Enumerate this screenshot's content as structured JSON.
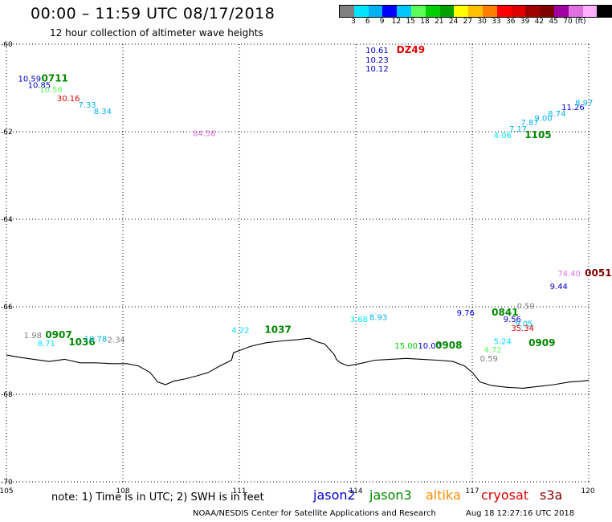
{
  "title": "00:00 – 11:59 UTC 08/17/2018",
  "subtitle": "12 hour collection of altimeter wave heights",
  "colorbar": {
    "colors": [
      "#808080",
      "#00e5ff",
      "#00b0f0",
      "#0000ff",
      "#00c8ff",
      "#5aff5a",
      "#00d000",
      "#00a000",
      "#ffff00",
      "#ffc000",
      "#ff8000",
      "#ff0000",
      "#e00000",
      "#a00000",
      "#800000",
      "#a000a0",
      "#e070e0",
      "#ffb0ff",
      "#000000"
    ],
    "labels": [
      "3",
      "6",
      "9",
      "12",
      "15",
      "18",
      "21",
      "24",
      "27",
      "30",
      "33",
      "36",
      "39",
      "42",
      "45",
      "70"
    ],
    "unit": "(ft)"
  },
  "note": "note:  1) Time is in UTC;  2) SWH is in feet",
  "satellites": [
    {
      "name": "jason2",
      "color": "#0000cc"
    },
    {
      "name": "jason3",
      "color": "#008800"
    },
    {
      "name": "altika",
      "color": "#ff8c00"
    },
    {
      "name": "cryosat",
      "color": "#dd0000"
    },
    {
      "name": "s3a",
      "color": "#880000"
    }
  ],
  "footer": "NOAA/NESDIS Center for Satellite Applications and Research",
  "footer_time": "Aug 18 12:27:16 UTC 2018",
  "map": {
    "lon_range": [
      105,
      120
    ],
    "lat_range": [
      -70,
      -60
    ],
    "lon_ticks": [
      "105",
      "108",
      "111",
      "114",
      "117",
      "120"
    ],
    "lat_ticks": [
      "-60",
      "-62",
      "-64",
      "-66",
      "-68",
      "-70"
    ],
    "grid": true
  },
  "observations": [
    {
      "text": "10.59",
      "lon": 105.3,
      "lat": -60.85,
      "color": "#0000cc"
    },
    {
      "text": "0711",
      "lon": 105.9,
      "lat": -60.85,
      "color": "#008800",
      "bold": true
    },
    {
      "text": "10.85",
      "lon": 105.55,
      "lat": -61.0,
      "color": "#0000cc"
    },
    {
      "text": "10.58",
      "lon": 105.85,
      "lat": -61.1,
      "color": "#5aff5a"
    },
    {
      "text": "30.16",
      "lon": 106.3,
      "lat": -61.3,
      "color": "#dd0000"
    },
    {
      "text": "7.33",
      "lon": 106.85,
      "lat": -61.45,
      "color": "#00b0f0"
    },
    {
      "text": "8.34",
      "lon": 107.25,
      "lat": -61.6,
      "color": "#00b0f0"
    },
    {
      "text": "84.58",
      "lon": 109.8,
      "lat": -62.1,
      "color": "#e070e0"
    },
    {
      "text": "10.61",
      "lon": 114.25,
      "lat": -60.2,
      "color": "#0000cc"
    },
    {
      "text": "DZ49",
      "lon": 115.05,
      "lat": -60.2,
      "color": "#dd0000",
      "bold": true
    },
    {
      "text": "10.23",
      "lon": 114.25,
      "lat": -60.42,
      "color": "#0000cc"
    },
    {
      "text": "10.12",
      "lon": 114.25,
      "lat": -60.62,
      "color": "#0000cc"
    },
    {
      "text": "4.06",
      "lon": 117.55,
      "lat": -62.15,
      "color": "#00e5ff"
    },
    {
      "text": "1105",
      "lon": 118.35,
      "lat": -62.15,
      "color": "#008800",
      "bold": true
    },
    {
      "text": "7.17",
      "lon": 117.95,
      "lat": -62.0,
      "color": "#00b0f0"
    },
    {
      "text": "7.87",
      "lon": 118.25,
      "lat": -61.85,
      "color": "#00b0f0"
    },
    {
      "text": "9.00",
      "lon": 118.6,
      "lat": -61.75,
      "color": "#00b0f0"
    },
    {
      "text": "8.74",
      "lon": 118.95,
      "lat": -61.65,
      "color": "#00b0f0"
    },
    {
      "text": "11.26",
      "lon": 119.3,
      "lat": -61.5,
      "color": "#0000cc"
    },
    {
      "text": "8.97",
      "lon": 119.65,
      "lat": -61.4,
      "color": "#00b0f0"
    },
    {
      "text": "74.40",
      "lon": 119.2,
      "lat": -65.3,
      "color": "#e070e0"
    },
    {
      "text": "0051",
      "lon": 119.9,
      "lat": -65.3,
      "color": "#800000",
      "bold": true
    },
    {
      "text": "9.44",
      "lon": 119.0,
      "lat": -65.6,
      "color": "#0000cc"
    },
    {
      "text": "0.59",
      "lon": 118.15,
      "lat": -66.05,
      "color": "#808080"
    },
    {
      "text": "9.76",
      "lon": 116.6,
      "lat": -66.2,
      "color": "#0000ff"
    },
    {
      "text": "0841",
      "lon": 117.5,
      "lat": -66.2,
      "color": "#008800",
      "bold": true
    },
    {
      "text": "9.56",
      "lon": 117.8,
      "lat": -66.35,
      "color": "#0000cc"
    },
    {
      "text": "9.05",
      "lon": 118.1,
      "lat": -66.45,
      "color": "#00b0f0"
    },
    {
      "text": "35.34",
      "lon": 118.0,
      "lat": -66.55,
      "color": "#dd0000"
    },
    {
      "text": "3.68",
      "lon": 113.85,
      "lat": -66.35,
      "color": "#00e5ff"
    },
    {
      "text": "8.93",
      "lon": 114.35,
      "lat": -66.3,
      "color": "#00b0f0"
    },
    {
      "text": "15.00",
      "lon": 115.0,
      "lat": -66.95,
      "color": "#00d000"
    },
    {
      "text": "10.00",
      "lon": 115.6,
      "lat": -66.95,
      "color": "#0000cc"
    },
    {
      "text": "0908",
      "lon": 116.05,
      "lat": -66.95,
      "color": "#008800",
      "bold": true
    },
    {
      "text": "5.24",
      "lon": 117.55,
      "lat": -66.85,
      "color": "#00e5ff"
    },
    {
      "text": "0909",
      "lon": 118.45,
      "lat": -66.9,
      "color": "#008800",
      "bold": true
    },
    {
      "text": "4.72",
      "lon": 117.3,
      "lat": -67.05,
      "color": "#5aff5a"
    },
    {
      "text": "0.59",
      "lon": 117.2,
      "lat": -67.25,
      "color": "#808080"
    },
    {
      "text": "4.22",
      "lon": 110.8,
      "lat": -66.6,
      "color": "#00e5ff"
    },
    {
      "text": "1037",
      "lon": 111.65,
      "lat": -66.6,
      "color": "#008800",
      "bold": true
    },
    {
      "text": "1.98",
      "lon": 105.45,
      "lat": -66.72,
      "color": "#808080"
    },
    {
      "text": "0907",
      "lon": 106.0,
      "lat": -66.72,
      "color": "#008800",
      "bold": true
    },
    {
      "text": "8.71",
      "lon": 105.8,
      "lat": -66.9,
      "color": "#00e5ff"
    },
    {
      "text": "1036",
      "lon": 106.6,
      "lat": -66.88,
      "color": "#008800",
      "bold": true
    },
    {
      "text": "10.78",
      "lon": 107.0,
      "lat": -66.8,
      "color": "#00b0f0"
    },
    {
      "text": "2.34",
      "lon": 107.6,
      "lat": -66.82,
      "color": "#808080"
    }
  ],
  "coastline": [
    [
      105,
      -67.1
    ],
    [
      105.3,
      -67.15
    ],
    [
      105.7,
      -67.2
    ],
    [
      106.1,
      -67.25
    ],
    [
      106.5,
      -67.2
    ],
    [
      106.9,
      -67.28
    ],
    [
      107.3,
      -67.28
    ],
    [
      107.7,
      -67.3
    ],
    [
      108.1,
      -67.3
    ],
    [
      108.4,
      -67.35
    ],
    [
      108.7,
      -67.5
    ],
    [
      108.9,
      -67.72
    ],
    [
      109.1,
      -67.78
    ],
    [
      109.3,
      -67.7
    ],
    [
      109.6,
      -67.65
    ],
    [
      109.9,
      -67.58
    ],
    [
      110.2,
      -67.5
    ],
    [
      110.5,
      -67.35
    ],
    [
      110.8,
      -67.22
    ],
    [
      110.85,
      -67.05
    ],
    [
      111.0,
      -67.0
    ],
    [
      111.3,
      -66.9
    ],
    [
      111.7,
      -66.82
    ],
    [
      112.1,
      -66.78
    ],
    [
      112.5,
      -66.75
    ],
    [
      112.8,
      -66.72
    ],
    [
      113.0,
      -66.8
    ],
    [
      113.2,
      -66.85
    ],
    [
      113.3,
      -66.95
    ],
    [
      113.45,
      -67.1
    ],
    [
      113.5,
      -67.2
    ],
    [
      113.6,
      -67.28
    ],
    [
      113.8,
      -67.35
    ],
    [
      114.1,
      -67.3
    ],
    [
      114.5,
      -67.22
    ],
    [
      114.9,
      -67.2
    ],
    [
      115.3,
      -67.18
    ],
    [
      115.7,
      -67.2
    ],
    [
      116.1,
      -67.22
    ],
    [
      116.5,
      -67.25
    ],
    [
      116.8,
      -67.35
    ],
    [
      117.0,
      -67.5
    ],
    [
      117.2,
      -67.72
    ],
    [
      117.5,
      -67.8
    ],
    [
      117.9,
      -67.84
    ],
    [
      118.3,
      -67.86
    ],
    [
      118.7,
      -67.82
    ],
    [
      119.1,
      -67.78
    ],
    [
      119.5,
      -67.72
    ],
    [
      119.8,
      -67.7
    ],
    [
      120,
      -67.68
    ]
  ]
}
